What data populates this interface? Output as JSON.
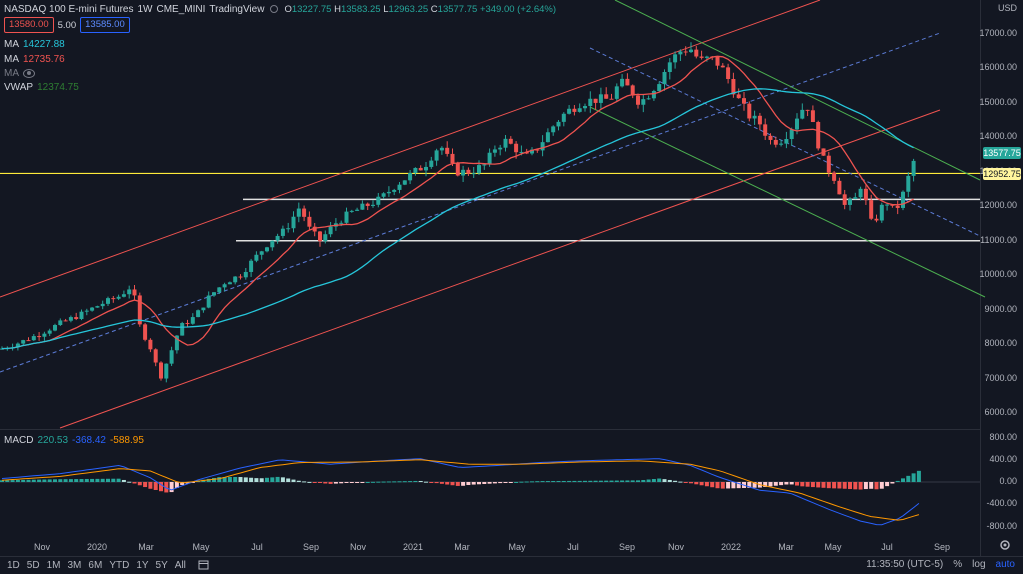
{
  "header": {
    "symbol_title": "NASDAQ 100 E-mini Futures",
    "interval": "1W",
    "exchange": "CME_MINI",
    "source": "TradingView",
    "ohlc": {
      "o_label": "O",
      "o": "13227.75",
      "h_label": "H",
      "h": "13583.25",
      "l_label": "L",
      "l": "12963.25",
      "c_label": "C",
      "c": "13577.75",
      "change": "+349.00 (+2.64%)"
    },
    "sell_price": "13580.00",
    "spread": "5.00",
    "buy_price": "13585.00"
  },
  "indicators": [
    {
      "name": "MA",
      "value": "14227.88",
      "color": "#26c6da"
    },
    {
      "name": "MA",
      "value": "12735.76",
      "color": "#ef5350"
    },
    {
      "name": "MA",
      "value": "",
      "color": "#787b86"
    },
    {
      "name": "VWAP",
      "value": "12374.75",
      "color": "#1b5e20"
    }
  ],
  "macd": {
    "name": "MACD",
    "v1": "220.53",
    "v2": "-368.42",
    "v3": "-588.95",
    "color1": "#26a69a",
    "color2": "#2962ff",
    "color3": "#ff9800"
  },
  "price_axis": {
    "currency": "USD",
    "labels": [
      "17000.00",
      "16000.00",
      "15000.00",
      "14000.00",
      "13000.00",
      "12000.00",
      "11000.00",
      "10000.00",
      "9000.00",
      "8000.00",
      "7000.00",
      "6000.00"
    ],
    "current_price": "13577.75",
    "hline_price": "12952.75"
  },
  "macd_axis": {
    "labels": [
      "800.00",
      "400.00",
      "0.00",
      "-400.00",
      "-800.00"
    ]
  },
  "time_axis": {
    "labels": [
      "Nov",
      "2020",
      "Mar",
      "May",
      "Jul",
      "Sep",
      "Nov",
      "2021",
      "Mar",
      "May",
      "Jul",
      "Sep",
      "Nov",
      "2022",
      "Mar",
      "May",
      "Jul",
      "Sep"
    ]
  },
  "bottom_bar": {
    "timeframes": [
      "1D",
      "5D",
      "1M",
      "3M",
      "6M",
      "YTD",
      "1Y",
      "5Y",
      "All"
    ],
    "clock": "11:35:50 (UTC-5)",
    "percent": "%",
    "log": "log",
    "auto": "auto"
  },
  "chart_data": {
    "type": "candlestick",
    "interval": "1W",
    "ylim": [
      5800,
      18000
    ],
    "series_color_up": "#26a69a",
    "series_color_down": "#ef5350",
    "horizontal_levels": [
      12952.75,
      12200,
      11000
    ],
    "closes_sample": [
      7800,
      8300,
      8900,
      9500,
      7000,
      8700,
      9800,
      10500,
      11500,
      12000,
      11000,
      12500,
      13200,
      12800,
      14000,
      13800,
      15200,
      16600,
      15500,
      14000,
      13000,
      12000,
      11500,
      12500,
      13577.75
    ]
  }
}
